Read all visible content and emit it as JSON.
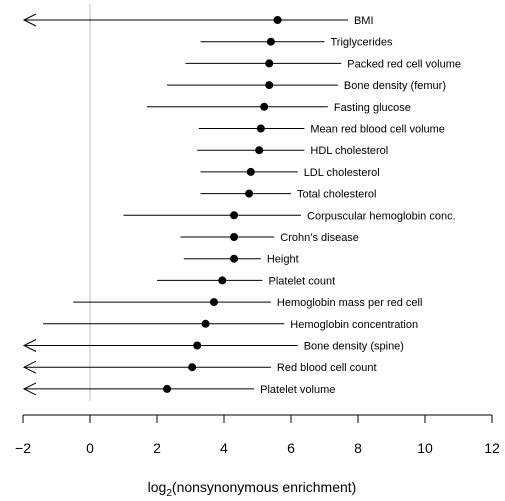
{
  "chart_data": {
    "type": "forest",
    "xlabel_prefix": "log",
    "xlabel_subscript": "2",
    "xlabel_rest": "(nonsynonymous enrichment)",
    "xlim": [
      -2,
      12
    ],
    "xticks": [
      -2,
      0,
      2,
      4,
      6,
      8,
      10,
      12
    ],
    "xtick_labels": [
      "−2",
      "0",
      "2",
      "4",
      "6",
      "8",
      "10",
      "12"
    ],
    "reference_line_x": 0,
    "traits": [
      {
        "label": "BMI",
        "estimate": 5.6,
        "lower": null,
        "upper": 7.7,
        "lower_open": true
      },
      {
        "label": "Triglycerides",
        "estimate": 5.4,
        "lower": 3.3,
        "upper": 7.0,
        "lower_open": false
      },
      {
        "label": "Packed red cell volume",
        "estimate": 5.35,
        "lower": 2.85,
        "upper": 7.5,
        "lower_open": false
      },
      {
        "label": "Bone density (femur)",
        "estimate": 5.35,
        "lower": 2.3,
        "upper": 7.4,
        "lower_open": false
      },
      {
        "label": "Fasting glucose",
        "estimate": 5.2,
        "lower": 1.7,
        "upper": 7.1,
        "lower_open": false
      },
      {
        "label": "Mean red blood cell volume",
        "estimate": 5.1,
        "lower": 3.25,
        "upper": 6.4,
        "lower_open": false
      },
      {
        "label": "HDL cholesterol",
        "estimate": 5.05,
        "lower": 3.2,
        "upper": 6.4,
        "lower_open": false
      },
      {
        "label": "LDL cholesterol",
        "estimate": 4.8,
        "lower": 3.3,
        "upper": 6.2,
        "lower_open": false
      },
      {
        "label": "Total cholesterol",
        "estimate": 4.75,
        "lower": 3.3,
        "upper": 6.0,
        "lower_open": false
      },
      {
        "label": "Corpuscular hemoglobin conc.",
        "estimate": 4.3,
        "lower": 1.0,
        "upper": 6.3,
        "lower_open": false
      },
      {
        "label": "Crohn’s disease",
        "estimate": 4.3,
        "lower": 2.7,
        "upper": 5.5,
        "lower_open": false
      },
      {
        "label": "Height",
        "estimate": 4.3,
        "lower": 2.8,
        "upper": 5.1,
        "lower_open": false
      },
      {
        "label": "Platelet count",
        "estimate": 3.95,
        "lower": 2.0,
        "upper": 5.15,
        "lower_open": false
      },
      {
        "label": "Hemoglobin mass per red cell",
        "estimate": 3.7,
        "lower": -0.5,
        "upper": 5.4,
        "lower_open": false
      },
      {
        "label": "Hemoglobin concentration",
        "estimate": 3.45,
        "lower": -1.4,
        "upper": 5.8,
        "lower_open": false
      },
      {
        "label": "Bone density (spine)",
        "estimate": 3.2,
        "lower": null,
        "upper": 6.2,
        "lower_open": true
      },
      {
        "label": "Red blood cell count",
        "estimate": 3.05,
        "lower": null,
        "upper": 5.4,
        "lower_open": true
      },
      {
        "label": "Platelet volume",
        "estimate": 2.3,
        "lower": null,
        "upper": 4.9,
        "lower_open": true
      }
    ]
  }
}
